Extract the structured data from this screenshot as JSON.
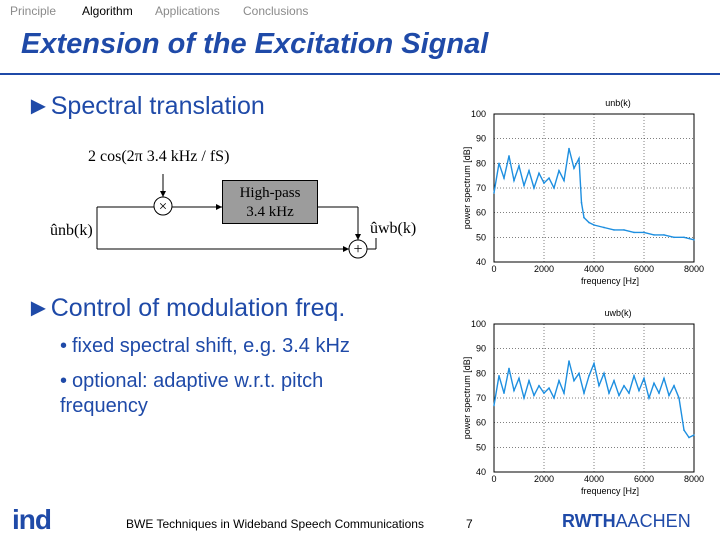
{
  "nav": {
    "items": [
      {
        "label": "Principle",
        "active": false
      },
      {
        "label": "Algorithm",
        "active": true
      },
      {
        "label": "Applications",
        "active": false
      },
      {
        "label": "Conclusions",
        "active": false
      }
    ]
  },
  "slide": {
    "title": "Extension of the Excitation Signal",
    "bullet1": "Spectral translation",
    "bullet2": "Control of modulation freq.",
    "sub_bullets": [
      "fixed spectral shift, e.g. 3.4 kHz",
      "optional: adaptive w.r.t. pitch frequency"
    ],
    "bullet_glyph": "►",
    "sub_bullet_glyph": "•"
  },
  "diagram": {
    "modulator_label": "2 cos(2π 3.4 kHz / fS)",
    "highpass_line1": "High-pass",
    "highpass_line2": "3.4 kHz",
    "input_label": "ûnb(k)",
    "output_label": "ûwb(k)",
    "multiplier_symbol": "×",
    "adder_symbol": "+"
  },
  "chart_data": [
    {
      "type": "line",
      "title": "unb(k)",
      "xlabel": "frequency [Hz]",
      "ylabel": "power spectrum [dB]",
      "xlim": [
        0,
        8000
      ],
      "ylim": [
        40,
        100
      ],
      "xticks": [
        0,
        2000,
        4000,
        6000,
        8000
      ],
      "yticks": [
        40,
        50,
        60,
        70,
        80,
        90,
        100
      ],
      "grid": true,
      "color": "#1e8fe0",
      "x": [
        0,
        200,
        400,
        600,
        800,
        1000,
        1200,
        1400,
        1600,
        1800,
        2000,
        2200,
        2400,
        2600,
        2800,
        3000,
        3200,
        3400,
        3500,
        3600,
        3800,
        4000,
        4400,
        4800,
        5200,
        5600,
        6000,
        6400,
        6800,
        7200,
        7600,
        8000
      ],
      "values": [
        68,
        80,
        74,
        83,
        73,
        79,
        71,
        77,
        70,
        76,
        72,
        74,
        70,
        77,
        73,
        86,
        78,
        82,
        64,
        58,
        56,
        55,
        54,
        53,
        53,
        52,
        52,
        51,
        51,
        50,
        50,
        49
      ]
    },
    {
      "type": "line",
      "title": "uwb(k)",
      "xlabel": "frequency [Hz]",
      "ylabel": "power spectrum [dB]",
      "xlim": [
        0,
        8000
      ],
      "ylim": [
        40,
        100
      ],
      "xticks": [
        0,
        2000,
        4000,
        6000,
        8000
      ],
      "yticks": [
        40,
        50,
        60,
        70,
        80,
        90,
        100
      ],
      "grid": true,
      "color": "#1e8fe0",
      "x": [
        0,
        200,
        400,
        600,
        800,
        1000,
        1200,
        1400,
        1600,
        1800,
        2000,
        2200,
        2400,
        2600,
        2800,
        3000,
        3200,
        3400,
        3600,
        3800,
        4000,
        4200,
        4400,
        4600,
        4800,
        5000,
        5200,
        5400,
        5600,
        5800,
        6000,
        6200,
        6400,
        6600,
        6800,
        7000,
        7200,
        7400,
        7600,
        7800,
        8000
      ],
      "values": [
        67,
        79,
        72,
        82,
        73,
        78,
        70,
        77,
        71,
        75,
        72,
        74,
        70,
        77,
        72,
        85,
        77,
        80,
        72,
        79,
        84,
        75,
        80,
        72,
        77,
        71,
        75,
        72,
        79,
        73,
        78,
        70,
        76,
        72,
        78,
        71,
        75,
        70,
        57,
        54,
        55
      ]
    }
  ],
  "footer": {
    "center": "BWE Techniques in Wideband Speech Communications",
    "page": "7",
    "logo_left": "ind",
    "logo_right_bold": "RWTH",
    "logo_right_light": "AACHEN"
  }
}
